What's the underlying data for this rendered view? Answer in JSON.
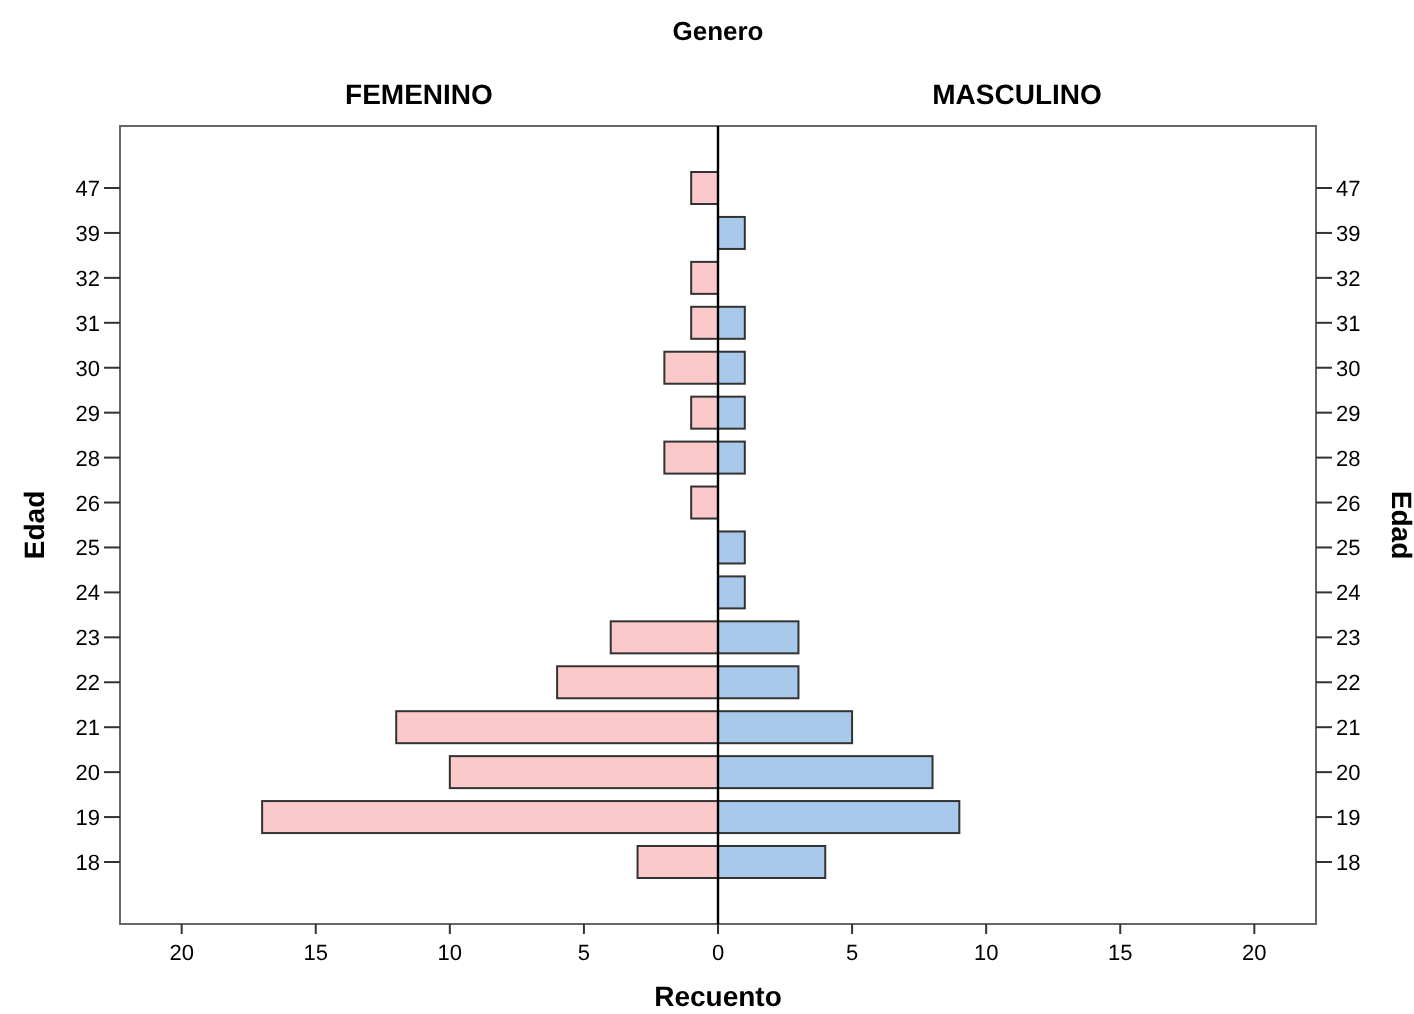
{
  "chart_data": [
    {
      "type": "bar",
      "orientation": "horizontal",
      "title": "FEMENINO",
      "annotations": [
        "Genero"
      ],
      "xlabel": "Recuento",
      "ylabel": "Edad",
      "categories": [
        "47",
        "39",
        "32",
        "31",
        "30",
        "29",
        "28",
        "26",
        "25",
        "24",
        "23",
        "22",
        "21",
        "20",
        "19",
        "18"
      ],
      "values": [
        1,
        0,
        1,
        1,
        2,
        1,
        2,
        1,
        0,
        0,
        4,
        6,
        12,
        10,
        17,
        3
      ],
      "color": "#fbc9c9",
      "xlim": [
        22.3,
        0
      ],
      "xticks": [
        20,
        15,
        10,
        5,
        0
      ],
      "grid": false
    },
    {
      "type": "bar",
      "orientation": "horizontal",
      "title": "MASCULINO",
      "y2label": "Edad",
      "categories": [
        "47",
        "39",
        "32",
        "31",
        "30",
        "29",
        "28",
        "26",
        "25",
        "24",
        "23",
        "22",
        "21",
        "20",
        "19",
        "18"
      ],
      "values": [
        0,
        1,
        0,
        1,
        1,
        1,
        1,
        0,
        1,
        1,
        3,
        3,
        5,
        8,
        9,
        4
      ],
      "color": "#a9c9eb",
      "xlim": [
        0,
        22.3
      ],
      "xticks": [
        {
          "value": 0,
          "label": null
        },
        5,
        10,
        15,
        20
      ],
      "grid": false
    }
  ]
}
